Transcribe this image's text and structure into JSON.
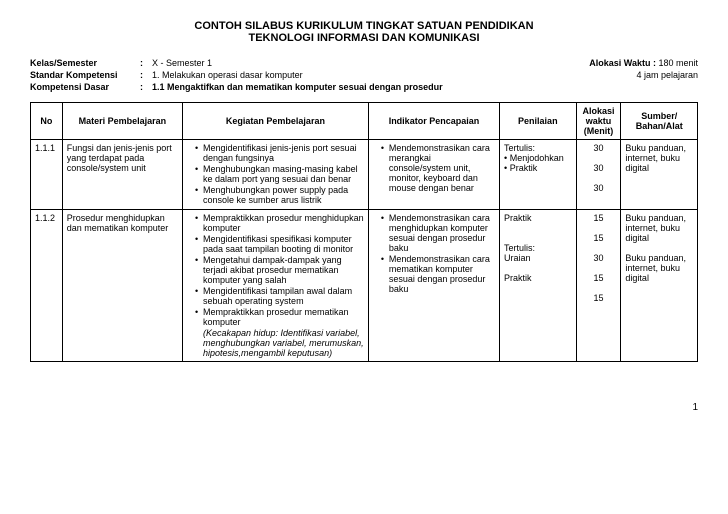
{
  "title1": "CONTOH SILABUS KURIKULUM TINGKAT SATUAN PENDIDIKAN",
  "title2": "TEKNOLOGI INFORMASI DAN KOMUNIKASI",
  "header": {
    "kelas_label": "Kelas/Semester",
    "kelas_value": "X  -  Semester 1",
    "standar_label": "Standar Kompetensi",
    "standar_value": "1. Melakukan operasi dasar komputer",
    "dasar_label": "Kompetensi Dasar",
    "dasar_value": "1.1 Mengaktifkan dan mematikan komputer sesuai dengan prosedur",
    "alokasi_label": "Alokasi Waktu  :",
    "alokasi_value": "180 menit",
    "alokasi_sub": "4 jam pelajaran"
  },
  "columns": {
    "no": "No",
    "materi": "Materi Pembelajaran",
    "kegiatan": "Kegiatan Pembelajaran",
    "indikator": "Indikator Pencapaian",
    "penilaian": "Penilaian",
    "waktu": "Alokasi waktu (Menit)",
    "sumber": "Sumber/ Bahan/Alat"
  },
  "rows": [
    {
      "no": "1.1.1",
      "materi": "Fungsi dan jenis-jenis port yang terdapat pada console/system unit",
      "kegiatan": [
        "Mengidentifikasi jenis-jenis port sesuai dengan fungsinya",
        "Menghubungkan masing-masing kabel ke dalam port yang sesuai dan benar",
        "Menghubungkan power supply pada console ke sumber arus listrik"
      ],
      "indikator": [
        "Mendemonstrasikan cara merangkai console/system unit, monitor, keyboard dan mouse dengan benar"
      ],
      "penilaian": [
        "Tertulis:",
        "• Menjodohkan",
        "• Praktik"
      ],
      "waktu": [
        "30",
        "30",
        "30"
      ],
      "sumber": "Buku panduan, internet, buku digital"
    },
    {
      "no": "1.1.2",
      "materi": "Prosedur menghidupkan dan mematikan komputer",
      "kegiatan": [
        "Mempraktikkan prosedur menghidupkan komputer",
        "Mengidentifikasi spesifikasi komputer pada saat tampilan booting di monitor",
        "Mengetahui dampak-dampak yang terjadi akibat prosedur mematikan komputer yang salah",
        "Mengidentifikasi tampilan awal dalam sebuah operating system",
        "Mempraktikkan prosedur mematikan komputer"
      ],
      "kegiatan_extra": "(Kecakapan hidup: Identifikasi variabel, menghubungkan variabel, merumuskan, hipotesis,mengambil keputusan)",
      "indikator": [
        "Mendemonstrasikan cara menghidupkan komputer sesuai dengan prosedur baku",
        "Mendemonstrasikan cara mematikan komputer sesuai dengan prosedur baku"
      ],
      "penilaian": [
        "Praktik",
        "",
        "",
        "Tertulis:",
        "Uraian",
        "",
        "Praktik"
      ],
      "waktu": [
        "15",
        "15",
        "30",
        "15",
        "15"
      ],
      "sumber": "Buku panduan, internet, buku digital",
      "sumber2": "Buku panduan, internet, buku digital"
    }
  ],
  "page": "1"
}
